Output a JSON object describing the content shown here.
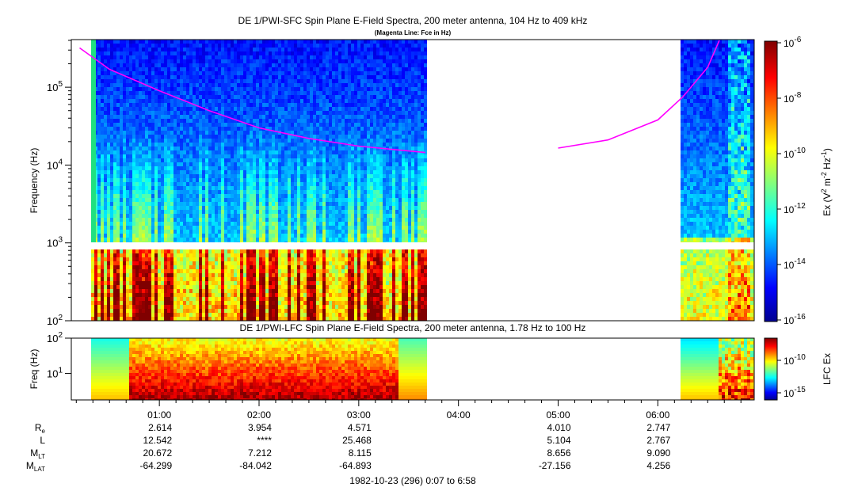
{
  "chart_data": [
    {
      "type": "heatmap",
      "title": "DE 1/PWI-SFC  Spin Plane E-Field Spectra, 200 meter antenna, 104 Hz to 409 kHz",
      "subtitle": "(Magenta Line: Fce in Hz)",
      "ylabel": "Frequency (Hz)",
      "ylim": [
        100,
        409000
      ],
      "yscale": "log",
      "ytick_labels": [
        "10^2",
        "10^3",
        "10^4",
        "10^5"
      ],
      "colorbar_label": "Ex (V² m⁻² Hz⁻¹)",
      "colorbar_range": [
        "1e-16",
        "1e-6"
      ],
      "colorbar_ticks": [
        "10^-6",
        "10^-8",
        "10^-10",
        "10^-12",
        "10^-14",
        "10^-16"
      ],
      "data_gaps": [
        [
          "03:42",
          "06:13"
        ]
      ],
      "fce_line": {
        "name": "Fce",
        "color": "#ff00ff",
        "segment_1": {
          "x": [
            "00:12",
            "00:30",
            "01:00",
            "01:30",
            "02:00",
            "02:30",
            "03:00",
            "03:40"
          ],
          "y": [
            320000,
            170000,
            90000,
            50000,
            30000,
            22000,
            17500,
            14500
          ]
        },
        "segment_2": {
          "x": [
            "05:00",
            "05:30",
            "06:00",
            "06:15",
            "06:30",
            "06:37"
          ],
          "y": [
            16500,
            21000,
            38000,
            75000,
            180000,
            400000
          ]
        }
      }
    },
    {
      "type": "heatmap",
      "title": "DE 1/PWI-LFC  Spin Plane E-Field Spectra, 200 meter antenna, 1.78 Hz to 100 Hz",
      "ylabel": "Freq (Hz)",
      "ylim": [
        1.78,
        100
      ],
      "yscale": "log",
      "ytick_labels": [
        "10^1",
        "10^2"
      ],
      "colorbar_label": "LFC Ex",
      "colorbar_ticks": [
        "10^-10",
        "10^-15"
      ],
      "data_gaps": [
        [
          "03:42",
          "06:13"
        ]
      ]
    }
  ],
  "x_axis": {
    "tick_labels": [
      "01:00",
      "02:00",
      "03:00",
      "04:00",
      "05:00",
      "06:00"
    ],
    "range": [
      "00:07",
      "06:58"
    ]
  },
  "ephemeris": {
    "rows": [
      {
        "label": "R",
        "sub": "e",
        "values": [
          "2.614",
          "3.954",
          "4.571",
          "",
          "4.010",
          "2.747"
        ]
      },
      {
        "label": "L",
        "sub": "",
        "values": [
          "12.542",
          "****",
          "25.468",
          "",
          "5.104",
          "2.767"
        ]
      },
      {
        "label": "M",
        "sub": "LT",
        "values": [
          "20.672",
          "7.212",
          "8.115",
          "",
          "8.656",
          "9.090"
        ]
      },
      {
        "label": "M",
        "sub": "LAT",
        "values": [
          "-64.299",
          "-84.042",
          "-64.893",
          "",
          "-27.156",
          "4.256"
        ]
      }
    ]
  },
  "footer": {
    "date": "1982-10-23 (296) 0:07 to 6:58"
  }
}
